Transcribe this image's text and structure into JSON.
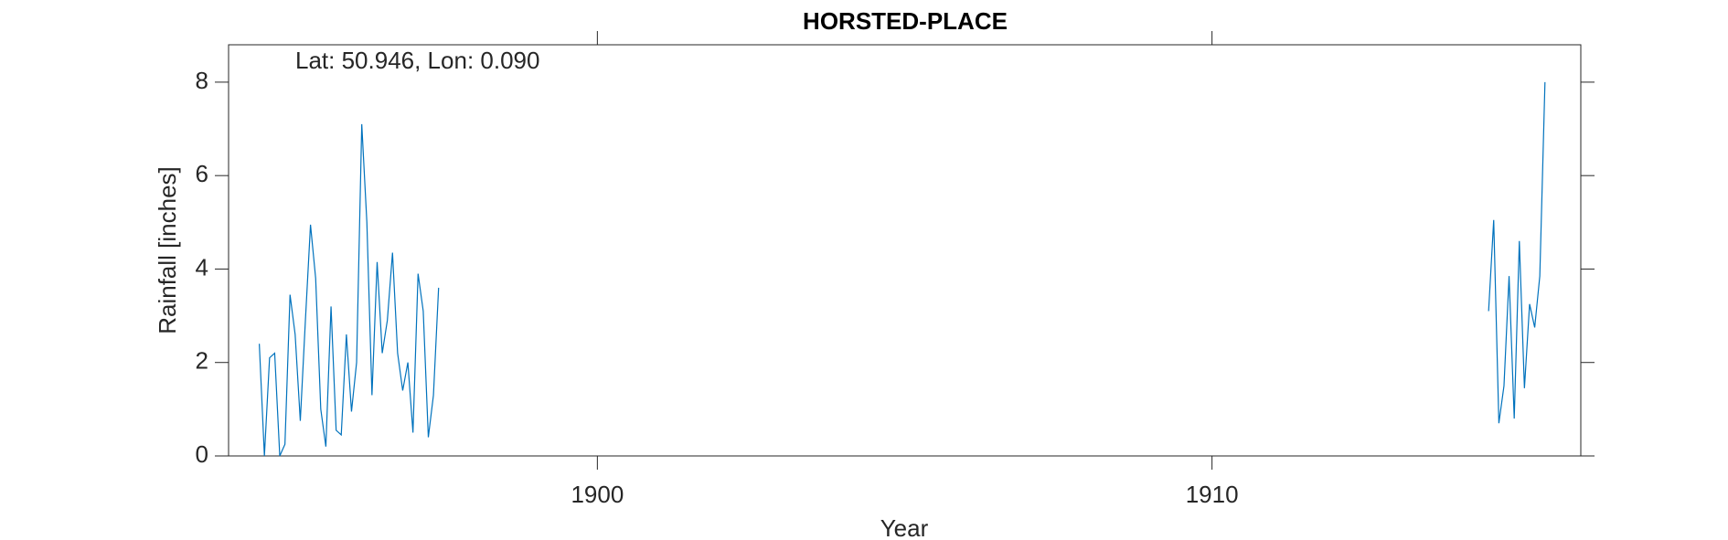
{
  "chart_data": {
    "type": "line",
    "title": "HORSTED-PLACE",
    "annotation": "Lat: 50.946, Lon: 0.090",
    "xlabel": "Year",
    "ylabel": "Rainfall [inches]",
    "color": "#0072bd",
    "xlim": [
      1894,
      1916
    ],
    "xticks": [
      1900,
      1910
    ],
    "ylim": [
      0,
      8.8
    ],
    "yticks": [
      0,
      2,
      4,
      6,
      8
    ],
    "x": [
      1894.5,
      1894.583,
      1894.667,
      1894.75,
      1894.833,
      1894.917,
      1895.0,
      1895.083,
      1895.167,
      1895.25,
      1895.333,
      1895.417,
      1895.5,
      1895.583,
      1895.667,
      1895.75,
      1895.833,
      1895.917,
      1896.0,
      1896.083,
      1896.167,
      1896.25,
      1896.333,
      1896.417,
      1896.5,
      1896.583,
      1896.667,
      1896.75,
      1896.833,
      1896.917,
      1897.0,
      1897.083,
      1897.167,
      1897.25,
      1897.333,
      1897.417,
      1897.5,
      1914.5,
      1914.583,
      1914.667,
      1914.75,
      1914.833,
      1914.917,
      1915.0,
      1915.083,
      1915.167,
      1915.25,
      1915.333,
      1915.417
    ],
    "values": [
      2.4,
      0.0,
      2.1,
      2.2,
      0.0,
      0.25,
      3.45,
      2.6,
      0.75,
      2.9,
      4.95,
      3.8,
      1.0,
      0.2,
      3.2,
      0.55,
      0.45,
      2.6,
      0.95,
      2.0,
      7.1,
      5.0,
      1.3,
      4.15,
      2.2,
      2.9,
      4.35,
      2.2,
      1.4,
      2.0,
      0.5,
      3.9,
      3.1,
      0.4,
      1.3,
      3.6,
      null,
      3.1,
      5.05,
      0.7,
      1.5,
      3.85,
      0.8,
      4.6,
      1.45,
      3.25,
      2.75,
      3.85,
      8.0
    ]
  }
}
